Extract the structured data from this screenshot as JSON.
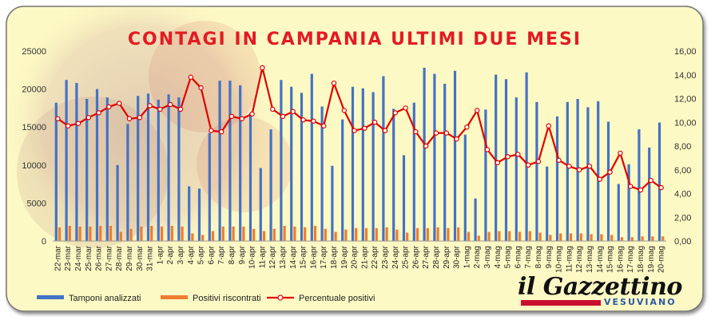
{
  "chart_data": {
    "type": "bar",
    "title": "CONTAGI IN CAMPANIA ULTIMI DUE MESI",
    "categories": [
      "22-mar",
      "23-mar",
      "24-mar",
      "25-mar",
      "26-mar",
      "27-mar",
      "28-mar",
      "29-mar",
      "30-mar",
      "31-mar",
      "1-apr",
      "2-apr",
      "3-apr",
      "4-apr",
      "5-apr",
      "6-apr",
      "7-apr",
      "8-apr",
      "9-apr",
      "10-apr",
      "11-apr",
      "12-apr",
      "13-apr",
      "14-apr",
      "15-apr",
      "16-apr",
      "17-apr",
      "18-apr",
      "19-apr",
      "20-apr",
      "21-apr",
      "22-apr",
      "23-apr",
      "24-apr",
      "25-apr",
      "26-apr",
      "27-apr",
      "28-apr",
      "29-apr",
      "30-apr",
      "1-mag",
      "2-mag",
      "3-mag",
      "4-mag",
      "5-mag",
      "6-mag",
      "7-mag",
      "8-mag",
      "9-mag",
      "10-mag",
      "11-mag",
      "12-mag",
      "13-mag",
      "14-mag",
      "15-mag",
      "16-mag",
      "17-mag",
      "18-mag",
      "19-mag",
      "20-mag"
    ],
    "series": [
      {
        "name": "Tamponi analizzati",
        "axis": "left",
        "color": "#4472c4",
        "values": [
          18200,
          21200,
          20800,
          18700,
          20000,
          18900,
          10000,
          15400,
          19100,
          19400,
          18600,
          19300,
          18900,
          7200,
          6900,
          14200,
          21100,
          21100,
          20500,
          16800,
          9600,
          14700,
          21200,
          20300,
          19500,
          22000,
          17700,
          9900,
          16000,
          20300,
          20100,
          19600,
          21700,
          17400,
          11300,
          18200,
          22800,
          22000,
          20700,
          22400,
          14000,
          5600,
          17300,
          21900,
          21300,
          18900,
          22200,
          18300,
          9800,
          16400,
          18300,
          18700,
          17600,
          18400,
          15700,
          7500,
          10100,
          14700,
          12300,
          15600
        ]
      },
      {
        "name": "Positivi riscontrati",
        "axis": "left",
        "color": "#ed7d31",
        "values": [
          1800,
          2000,
          1900,
          1900,
          2000,
          2000,
          1200,
          1600,
          1900,
          2000,
          1900,
          2000,
          1900,
          1000,
          800,
          1300,
          1900,
          1900,
          1900,
          1600,
          1300,
          1600,
          2000,
          1900,
          1800,
          2000,
          1600,
          1200,
          1500,
          1700,
          1700,
          1700,
          1800,
          1500,
          1100,
          1700,
          1700,
          1800,
          1700,
          1800,
          1200,
          700,
          1200,
          1300,
          1300,
          1200,
          1300,
          1100,
          800,
          1000,
          1000,
          1000,
          900,
          900,
          800,
          500,
          500,
          600,
          600,
          600
        ]
      },
      {
        "name": "Percentuale positivi",
        "axis": "right",
        "color": "#e00000",
        "values": [
          10.3,
          9.7,
          9.9,
          10.4,
          10.8,
          11.3,
          11.6,
          10.3,
          10.4,
          11.4,
          11.1,
          11.5,
          11.1,
          13.8,
          12.9,
          9.3,
          9.2,
          10.5,
          10.3,
          10.7,
          14.6,
          11.1,
          10.5,
          10.9,
          10.2,
          10.1,
          9.7,
          13.3,
          11.0,
          9.3,
          9.5,
          10.0,
          9.3,
          10.8,
          11.2,
          9.2,
          8.0,
          9.1,
          9.1,
          8.6,
          9.6,
          11.0,
          7.7,
          6.6,
          7.1,
          7.3,
          6.4,
          6.7,
          9.7,
          6.8,
          6.3,
          6.0,
          6.3,
          5.2,
          5.8,
          7.4,
          4.6,
          4.3,
          5.1,
          4.5
        ]
      }
    ],
    "ylim_left": [
      0,
      25000
    ],
    "yticks_left": [
      "0",
      "5000",
      "10000",
      "15000",
      "20000",
      "25000"
    ],
    "ylim_right": [
      0,
      16
    ],
    "yticks_right": [
      "0,00",
      "2,00",
      "4,00",
      "6,00",
      "8,00",
      "10,00",
      "12,00",
      "14,00",
      "16,00"
    ],
    "legend_position": "bottom-left"
  },
  "logo": {
    "main": "il Gazzettino",
    "sub": "VESUVIANO"
  },
  "colors": {
    "background": "#fdf9c4",
    "title": "#e31b23",
    "bars_tamponi": "#4472c4",
    "bars_positivi": "#ed7d31",
    "line": "#e00000"
  }
}
